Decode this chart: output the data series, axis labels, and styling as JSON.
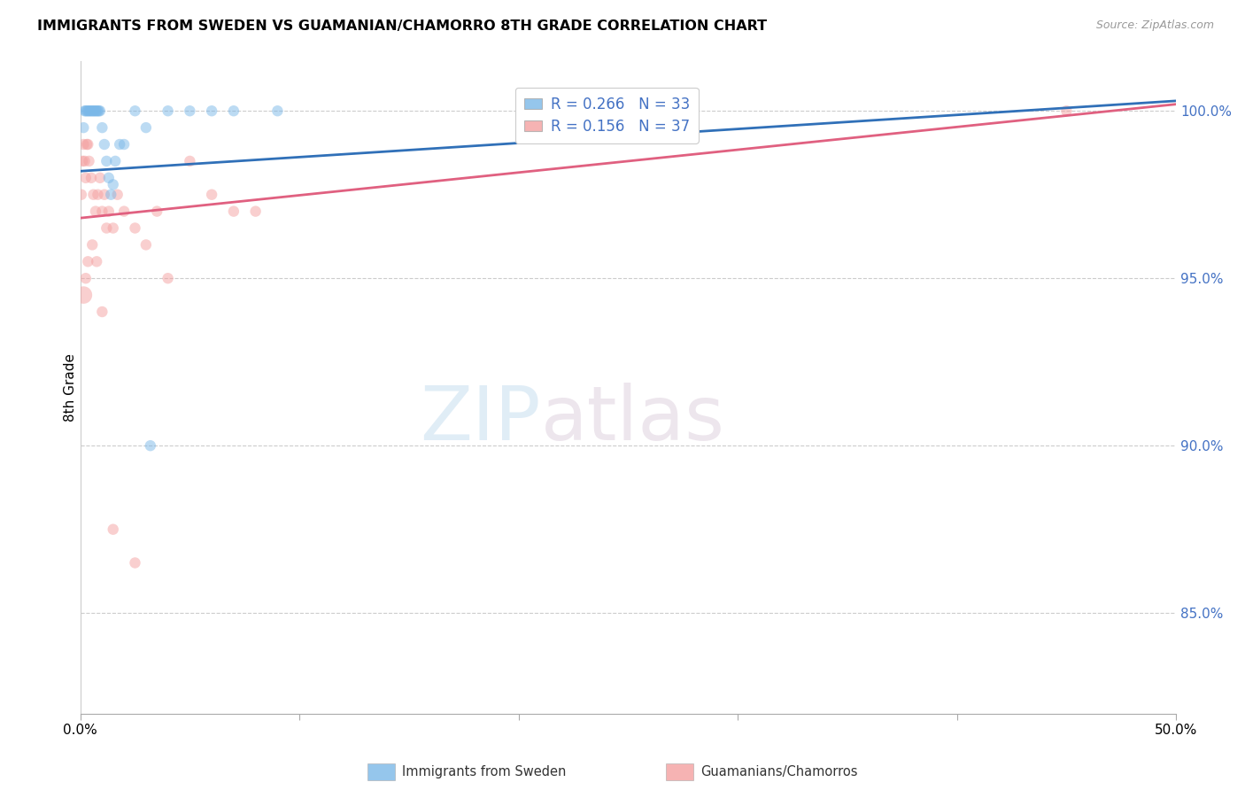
{
  "title": "IMMIGRANTS FROM SWEDEN VS GUAMANIAN/CHAMORRO 8TH GRADE CORRELATION CHART",
  "source": "Source: ZipAtlas.com",
  "ylabel": "8th Grade",
  "xlim": [
    0.0,
    50.0
  ],
  "ylim": [
    82.0,
    101.5
  ],
  "yticks": [
    85.0,
    90.0,
    95.0,
    100.0
  ],
  "ytick_labels": [
    "85.0%",
    "90.0%",
    "95.0%",
    "100.0%"
  ],
  "xtick_positions": [
    0.0,
    10.0,
    20.0,
    30.0,
    40.0,
    50.0
  ],
  "xtick_labels": [
    "0.0%",
    "",
    "",
    "",
    "",
    "50.0%"
  ],
  "blue_R": 0.266,
  "blue_N": 33,
  "pink_R": 0.156,
  "pink_N": 37,
  "blue_color": "#7BB8E8",
  "pink_color": "#F4A0A0",
  "blue_line_color": "#3070B8",
  "pink_line_color": "#E06080",
  "legend_label_blue": "Immigrants from Sweden",
  "legend_label_pink": "Guamanians/Chamorros",
  "watermark_zip": "ZIP",
  "watermark_atlas": "atlas",
  "blue_x": [
    0.15,
    0.2,
    0.25,
    0.3,
    0.35,
    0.4,
    0.45,
    0.5,
    0.55,
    0.6,
    0.65,
    0.7,
    0.75,
    0.8,
    0.85,
    0.9,
    1.0,
    1.1,
    1.2,
    1.3,
    1.4,
    1.5,
    1.6,
    1.8,
    2.0,
    2.5,
    3.0,
    4.0,
    5.0,
    6.0,
    7.0,
    3.2,
    9.0
  ],
  "blue_y": [
    99.5,
    100.0,
    100.0,
    100.0,
    100.0,
    100.0,
    100.0,
    100.0,
    100.0,
    100.0,
    100.0,
    100.0,
    100.0,
    100.0,
    100.0,
    100.0,
    99.5,
    99.0,
    98.5,
    98.0,
    97.5,
    97.8,
    98.5,
    99.0,
    99.0,
    100.0,
    99.5,
    100.0,
    100.0,
    100.0,
    100.0,
    90.0,
    100.0
  ],
  "blue_sizes": [
    80,
    80,
    80,
    80,
    80,
    80,
    80,
    80,
    80,
    80,
    80,
    80,
    80,
    80,
    80,
    80,
    80,
    80,
    80,
    80,
    80,
    80,
    80,
    80,
    80,
    80,
    80,
    80,
    80,
    80,
    80,
    80,
    80
  ],
  "pink_x": [
    0.05,
    0.1,
    0.15,
    0.2,
    0.25,
    0.3,
    0.35,
    0.4,
    0.5,
    0.6,
    0.7,
    0.8,
    0.9,
    1.0,
    1.1,
    1.2,
    1.3,
    1.5,
    1.7,
    2.0,
    2.5,
    3.0,
    4.0,
    5.0,
    6.0,
    7.0,
    0.15,
    0.25,
    0.35,
    0.55,
    0.75,
    1.0,
    1.5,
    2.5,
    3.5,
    8.0,
    45.0
  ],
  "pink_y": [
    97.5,
    98.5,
    99.0,
    98.5,
    98.0,
    99.0,
    99.0,
    98.5,
    98.0,
    97.5,
    97.0,
    97.5,
    98.0,
    97.0,
    97.5,
    96.5,
    97.0,
    96.5,
    97.5,
    97.0,
    96.5,
    96.0,
    95.0,
    98.5,
    97.5,
    97.0,
    94.5,
    95.0,
    95.5,
    96.0,
    95.5,
    94.0,
    87.5,
    86.5,
    97.0,
    97.0,
    100.0
  ],
  "pink_sizes": [
    80,
    80,
    80,
    80,
    80,
    80,
    80,
    80,
    80,
    80,
    80,
    80,
    80,
    80,
    80,
    80,
    80,
    80,
    80,
    80,
    80,
    80,
    80,
    80,
    80,
    80,
    200,
    80,
    80,
    80,
    80,
    80,
    80,
    80,
    80,
    80,
    80
  ],
  "blue_line_x": [
    0.0,
    50.0
  ],
  "blue_line_y": [
    98.2,
    100.3
  ],
  "pink_line_x": [
    0.0,
    50.0
  ],
  "pink_line_y": [
    96.8,
    100.2
  ]
}
